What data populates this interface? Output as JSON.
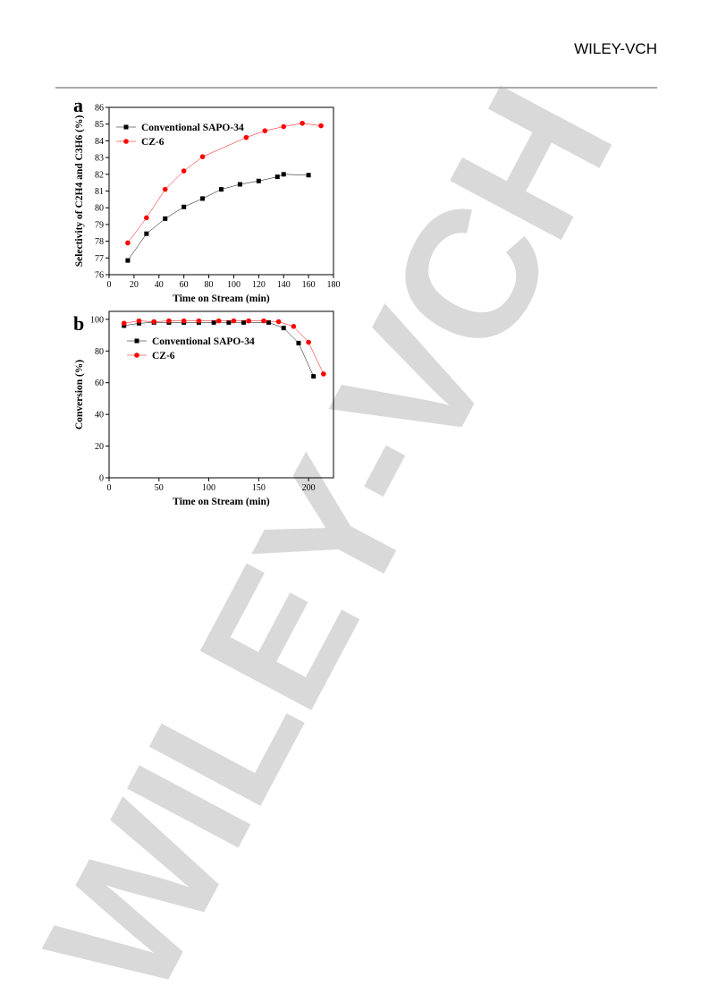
{
  "header": {
    "brand": "WILEY-VCH"
  },
  "watermark": "WILEY-VCH",
  "chart_data": [
    {
      "type": "line",
      "panel": "a",
      "xlabel": "Time on Stream (min)",
      "ylabel": "Selectivity of C2H4 and C3H6 (%)",
      "xlim": [
        0,
        180
      ],
      "xticks": [
        0,
        20,
        40,
        60,
        80,
        100,
        120,
        140,
        160,
        180
      ],
      "ylim": [
        76,
        86
      ],
      "yticks": [
        76,
        77,
        78,
        79,
        80,
        81,
        82,
        83,
        84,
        85,
        86
      ],
      "legend": "upper left",
      "series": [
        {
          "name": "Conventional SAPO-34",
          "color": "#000000",
          "marker": "square",
          "x": [
            15,
            30,
            45,
            60,
            75,
            90,
            105,
            120,
            135,
            140,
            160
          ],
          "values": [
            76.85,
            78.45,
            79.35,
            80.05,
            80.55,
            81.1,
            81.4,
            81.6,
            81.85,
            82.0,
            81.95
          ]
        },
        {
          "name": "CZ-6",
          "color": "#ff0000",
          "marker": "circle",
          "x": [
            15,
            30,
            45,
            60,
            75,
            110,
            125,
            140,
            155,
            170
          ],
          "values": [
            77.9,
            79.4,
            81.1,
            82.2,
            83.05,
            84.2,
            84.6,
            84.85,
            85.05,
            84.9
          ]
        }
      ]
    },
    {
      "type": "line",
      "panel": "b",
      "xlabel": "Time on Stream (min)",
      "ylabel": "Conversion (%)",
      "xlim": [
        0,
        225
      ],
      "xticks": [
        0,
        50,
        100,
        150,
        200
      ],
      "ylim": [
        0,
        105
      ],
      "yticks": [
        0,
        20,
        40,
        60,
        80,
        100
      ],
      "legend": "center left",
      "series": [
        {
          "name": "Conventional SAPO-34",
          "color": "#000000",
          "marker": "square",
          "x": [
            15,
            30,
            45,
            60,
            75,
            90,
            105,
            120,
            135,
            160,
            175,
            190,
            205
          ],
          "values": [
            96,
            97.5,
            98,
            98,
            98,
            98,
            98,
            98,
            98,
            98,
            94.5,
            85,
            64
          ]
        },
        {
          "name": "CZ-6",
          "color": "#ff0000",
          "marker": "circle",
          "x": [
            15,
            30,
            45,
            60,
            75,
            90,
            110,
            125,
            140,
            155,
            170,
            185,
            200,
            215
          ],
          "values": [
            97.5,
            99,
            98.5,
            99,
            99,
            99,
            99,
            99,
            99,
            99,
            98.5,
            95.5,
            85.5,
            65.5
          ]
        }
      ]
    }
  ]
}
